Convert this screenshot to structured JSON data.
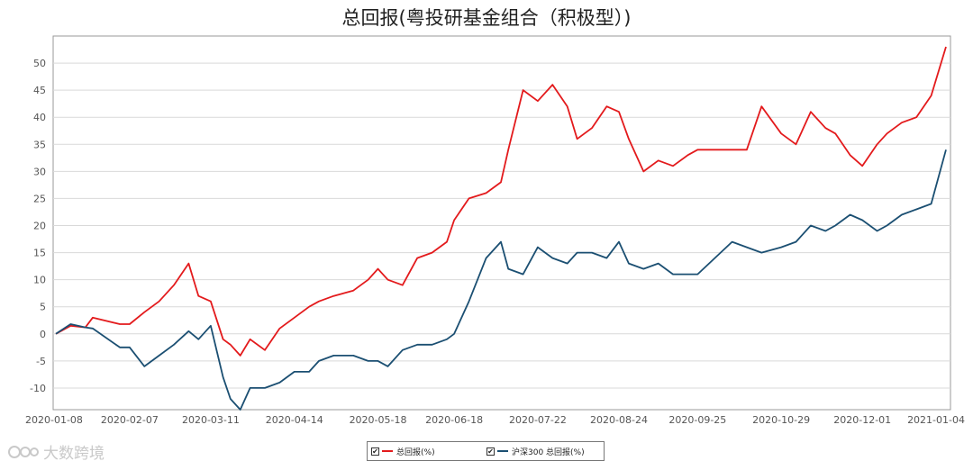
{
  "chart_data": {
    "type": "line",
    "title": "总回报(粤投研基金组合（积极型）)",
    "x_ticks": [
      "2020-01-08",
      "2020-02-07",
      "2020-03-11",
      "2020-04-14",
      "2020-05-18",
      "2020-06-18",
      "2020-07-22",
      "2020-08-24",
      "2020-09-25",
      "2020-10-29",
      "2020-12-01",
      "2021-01-04"
    ],
    "y_ticks": [
      -10,
      -5,
      0,
      5,
      10,
      15,
      20,
      25,
      30,
      35,
      40,
      45,
      50
    ],
    "ylim": [
      -14,
      55
    ],
    "grid": true,
    "legend_position": "bottom",
    "x": [
      "2020-01-08",
      "2020-01-14",
      "2020-01-20",
      "2020-01-23",
      "2020-02-03",
      "2020-02-07",
      "2020-02-13",
      "2020-02-19",
      "2020-02-25",
      "2020-03-02",
      "2020-03-06",
      "2020-03-11",
      "2020-03-16",
      "2020-03-19",
      "2020-03-23",
      "2020-03-27",
      "2020-04-02",
      "2020-04-08",
      "2020-04-14",
      "2020-04-20",
      "2020-04-24",
      "2020-04-30",
      "2020-05-08",
      "2020-05-14",
      "2020-05-18",
      "2020-05-22",
      "2020-05-28",
      "2020-06-03",
      "2020-06-09",
      "2020-06-15",
      "2020-06-18",
      "2020-06-24",
      "2020-07-01",
      "2020-07-07",
      "2020-07-10",
      "2020-07-16",
      "2020-07-22",
      "2020-07-28",
      "2020-08-03",
      "2020-08-07",
      "2020-08-13",
      "2020-08-19",
      "2020-08-24",
      "2020-08-28",
      "2020-09-03",
      "2020-09-09",
      "2020-09-15",
      "2020-09-21",
      "2020-09-25",
      "2020-10-09",
      "2020-10-15",
      "2020-10-21",
      "2020-10-29",
      "2020-11-04",
      "2020-11-10",
      "2020-11-16",
      "2020-11-20",
      "2020-11-26",
      "2020-12-01",
      "2020-12-07",
      "2020-12-11",
      "2020-12-17",
      "2020-12-23",
      "2020-12-29",
      "2021-01-04"
    ],
    "series": [
      {
        "name": "总回报(%)",
        "color": "#e31a1c",
        "values": [
          0,
          1.5,
          1.2,
          3,
          1.8,
          1.8,
          4,
          6,
          9,
          13,
          7,
          6,
          -1,
          -2,
          -4,
          -1,
          -3,
          1,
          3,
          5,
          6,
          7,
          8,
          10,
          12,
          10,
          9,
          14,
          15,
          17,
          21,
          25,
          26,
          28,
          34,
          45,
          43,
          46,
          42,
          36,
          38,
          42,
          41,
          36,
          30,
          32,
          31,
          33,
          34,
          34,
          34,
          42,
          37,
          35,
          41,
          38,
          37,
          33,
          31,
          35,
          37,
          39,
          40,
          44,
          53
        ]
      },
      {
        "name": "沪深300 总回报(%)",
        "color": "#1b4f72",
        "values": [
          0,
          1.8,
          1.2,
          1,
          -2.5,
          -2.5,
          -6,
          -4,
          -2,
          0.5,
          -1,
          1.5,
          -8,
          -12,
          -14,
          -10,
          -10,
          -9,
          -7,
          -7,
          -5,
          -4,
          -4,
          -5,
          -5,
          -6,
          -3,
          -2,
          -2,
          -1,
          0,
          6,
          14,
          17,
          12,
          11,
          16,
          14,
          13,
          15,
          15,
          14,
          17,
          13,
          12,
          13,
          11,
          11,
          11,
          17,
          16,
          15,
          16,
          17,
          20,
          19,
          20,
          22,
          21,
          19,
          20,
          22,
          23,
          24,
          34
        ]
      }
    ]
  },
  "watermark": {
    "text": "大数跨境"
  }
}
